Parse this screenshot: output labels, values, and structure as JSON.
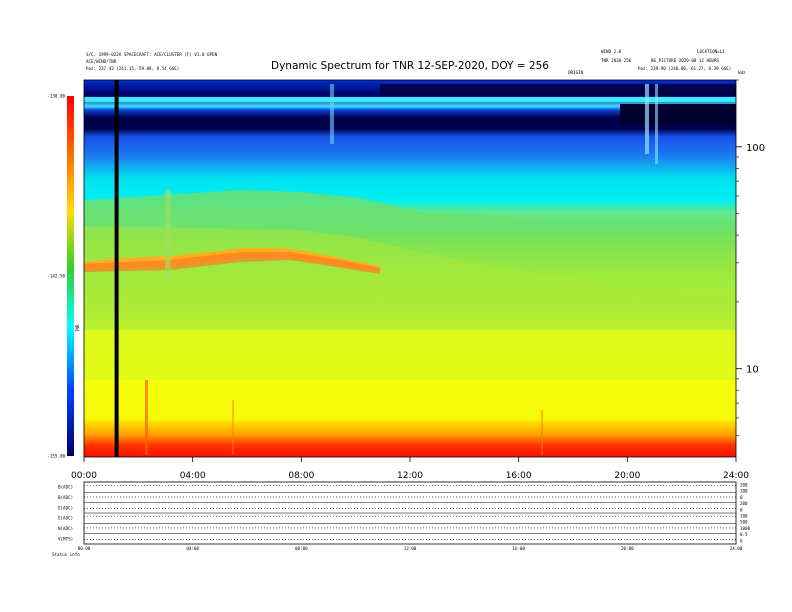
{
  "header": {
    "left_line1": "S/C: 1999-022A  SPACECRAFT: ACE/CLUSTER (F) V1.0  OPEN",
    "left_line2": "ACE/WIND/TNR",
    "left_line3": "Pos:   237.42 (241.15,-59.88, 8.54 GSE)",
    "center_small": "ORIGIN",
    "right_line1": "WIND 2.0",
    "right_line2": "TNR 2020-256",
    "right_line3": "BG_PICTURE  2020-08 12  HOURS",
    "right_line4": "Pos:   239.90 (240.00,-61.27, 6.39 GSE)",
    "right_small": "kHz",
    "right_top_small": "LOCATION=L1"
  },
  "chart_data": {
    "type": "heatmap",
    "title": "Dynamic Spectrum for TNR 12-SEP-2020, DOY = 256",
    "x_range_hours": [
      0,
      24
    ],
    "x_tick_labels": [
      "00:00",
      "04:00",
      "08:00",
      "12:00",
      "16:00",
      "20:00",
      "24:00"
    ],
    "y_right_scale": "log",
    "y_right_range_khz": [
      4,
      200
    ],
    "y_right_ticks": [
      {
        "value": 100,
        "label": "100"
      },
      {
        "value": 10,
        "label": "10"
      }
    ],
    "colorbar": {
      "label": "TNR",
      "range": [
        -155,
        -130
      ],
      "tick_labels": [
        "-130.00",
        "-142.50",
        "-155.00"
      ],
      "colors": [
        "#ff0000",
        "#ff8800",
        "#ffff00",
        "#00dd00",
        "#00ffff",
        "#0000ff",
        "#000044"
      ]
    },
    "colors": {
      "bottom_band": "#ff2000",
      "lower": "#ffff00",
      "middle": "#80e040",
      "upper": "#00e8f0",
      "top": "#0028c8",
      "top_dark": "#000040",
      "emission_band": "#ff8030"
    },
    "bands_khz": [
      {
        "name": "red floor",
        "from": 4,
        "to": 4.6
      },
      {
        "name": "orange-yellow",
        "from": 4.6,
        "to": 6
      },
      {
        "name": "yellow",
        "from": 6,
        "to": 16
      },
      {
        "name": "green",
        "from": 16,
        "to": 58
      },
      {
        "name": "cyan",
        "from": 58,
        "to": 100
      },
      {
        "name": "blue",
        "from": 100,
        "to": 200
      }
    ],
    "emission_line_khz": 35,
    "data_gap_hour": 1.2
  },
  "lower_panels": {
    "row_labels": [
      "B(ADC)",
      "B(ADC)",
      "E(ADC)",
      "E(ADC)",
      "N(ADC)",
      "V(MTS)"
    ],
    "right_labels": [
      "200",
      "100",
      "0",
      "200",
      "0",
      "100",
      "500",
      "1000",
      "0.5",
      "0"
    ],
    "time_labels": [
      "00:00",
      "04:00",
      "08:00",
      "12:00",
      "16:00",
      "20:00",
      "24:00"
    ],
    "footer_label": "Status   info"
  }
}
